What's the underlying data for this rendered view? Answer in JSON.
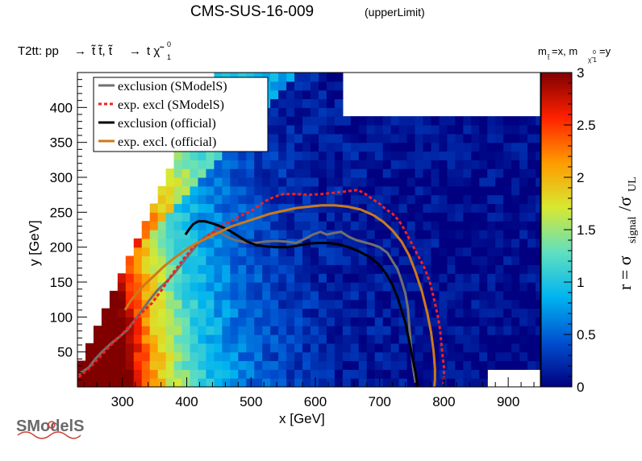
{
  "header": {
    "title": "CMS-SUS-16-009",
    "subtitle": "(upperLimit)",
    "process_prefix": "T2tt: pp",
    "mass_label_left": "m",
    "mass_label_mid": "=x, m",
    "mass_label_right": "=y"
  },
  "logo": {
    "text": "SModelS"
  },
  "chart_data": {
    "type": "heatmap",
    "xlabel": "x [GeV]",
    "ylabel": "y [GeV]",
    "zlabel": "r = σsignal/σUL",
    "xlim": [
      230,
      950
    ],
    "ylim": [
      0,
      450
    ],
    "zlim": [
      0,
      3
    ],
    "x_ticks": [
      300,
      400,
      500,
      600,
      700,
      800,
      900
    ],
    "y_ticks": [
      50,
      100,
      150,
      200,
      250,
      300,
      350,
      400
    ],
    "z_ticks": [
      0,
      0.5,
      1,
      1.5,
      2,
      2.5,
      3
    ],
    "grid": false,
    "legend_position": "top-left",
    "colormap": [
      "#000080",
      "#0050d0",
      "#00b4f0",
      "#60e0c0",
      "#d8e830",
      "#ff9a00",
      "#ff2000",
      "#800000"
    ],
    "series": [
      {
        "name": "exclusion (SModelS)",
        "color": "#707070",
        "style": "solid",
        "x": [
          232,
          248,
          258,
          268,
          282,
          296,
          308,
          318,
          326,
          334,
          342,
          354,
          368,
          382,
          394,
          406,
          418,
          430,
          442,
          454,
          464,
          476,
          490,
          506,
          522,
          538,
          554,
          570,
          584,
          596,
          608,
          618,
          628,
          640,
          652,
          664,
          676,
          688,
          700,
          712,
          720,
          728,
          734,
          740,
          744,
          746,
          748,
          750,
          752,
          754,
          756
        ],
        "y": [
          18,
          28,
          40,
          50,
          62,
          72,
          82,
          94,
          104,
          114,
          124,
          138,
          150,
          164,
          178,
          192,
          206,
          216,
          222,
          220,
          214,
          210,
          207,
          206,
          208,
          209,
          208,
          206,
          212,
          218,
          222,
          218,
          220,
          222,
          215,
          210,
          207,
          204,
          200,
          192,
          180,
          168,
          152,
          134,
          112,
          88,
          66,
          46,
          28,
          16,
          6
        ]
      },
      {
        "name": "exp. excl (SModelS)",
        "color": "#ee2222",
        "style": "dotted",
        "x": [
          232,
          250,
          266,
          282,
          298,
          314,
          330,
          346,
          362,
          378,
          394,
          410,
          426,
          442,
          458,
          474,
          490,
          504,
          516,
          526,
          536,
          550,
          570,
          590,
          610,
          630,
          650,
          666,
          678,
          690,
          700,
          710,
          720,
          730,
          738,
          746,
          754,
          762,
          770,
          778,
          784,
          790,
          794,
          796,
          798,
          800,
          800,
          799
        ],
        "y": [
          14,
          28,
          44,
          60,
          74,
          90,
          106,
          120,
          140,
          162,
          182,
          200,
          212,
          222,
          232,
          240,
          248,
          254,
          262,
          268,
          272,
          276,
          276,
          275,
          276,
          278,
          280,
          282,
          276,
          268,
          262,
          254,
          248,
          238,
          226,
          212,
          198,
          184,
          170,
          150,
          128,
          104,
          82,
          62,
          44,
          28,
          14,
          4
        ]
      },
      {
        "name": "exclusion (official)",
        "color": "#000000",
        "style": "solid",
        "x": [
          398,
          404,
          410,
          418,
          428,
          440,
          452,
          466,
          480,
          494,
          508,
          524,
          540,
          556,
          572,
          588,
          604,
          620,
          636,
          652,
          668,
          684,
          698,
          710,
          720,
          728,
          734,
          740,
          744,
          748,
          752,
          756,
          758,
          758
        ],
        "y": [
          218,
          226,
          233,
          237,
          237,
          234,
          230,
          224,
          216,
          208,
          203,
          201,
          200,
          200,
          202,
          205,
          206,
          206,
          204,
          200,
          194,
          186,
          176,
          162,
          146,
          128,
          110,
          92,
          74,
          56,
          38,
          20,
          8,
          0
        ]
      },
      {
        "name": "exp. excl. (official)",
        "color": "#cc7a1a",
        "style": "solid",
        "x": [
          304,
          312,
          322,
          334,
          348,
          364,
          380,
          398,
          416,
          434,
          452,
          470,
          490,
          510,
          530,
          550,
          570,
          590,
          610,
          630,
          650,
          670,
          690,
          706,
          720,
          734,
          746,
          756,
          766,
          774,
          780,
          784,
          786,
          786,
          785
        ],
        "y": [
          110,
          122,
          134,
          146,
          158,
          172,
          184,
          196,
          206,
          214,
          222,
          230,
          236,
          242,
          248,
          252,
          256,
          258,
          260,
          260,
          258,
          254,
          246,
          236,
          224,
          208,
          188,
          164,
          136,
          106,
          78,
          50,
          26,
          10,
          0
        ]
      }
    ]
  }
}
